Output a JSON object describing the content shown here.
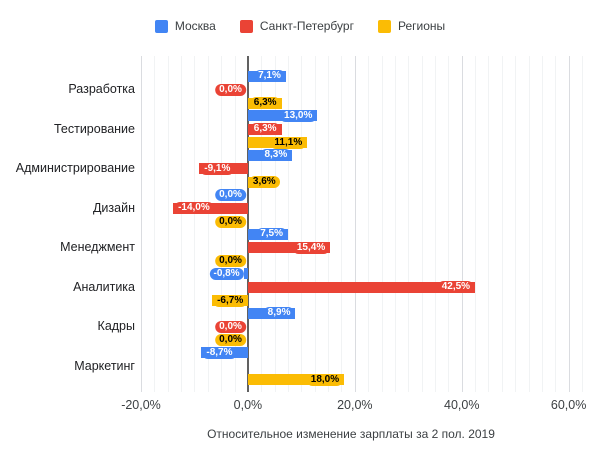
{
  "chart_data": {
    "type": "bar",
    "orientation": "horizontal",
    "title": "",
    "xlabel": "Относительное изменение зарплаты за 2 пол. 2019",
    "ylabel": "",
    "xlim": [
      -20,
      62.5
    ],
    "grid": "vertical, minor step 2.5, major step 20",
    "legend_position": "top-center",
    "categories": [
      "Разработка",
      "Тестирование",
      "Администрирование",
      "Дизайн",
      "Менеджмент",
      "Аналитика",
      "Кадры",
      "Маркетинг"
    ],
    "x_ticks": [
      {
        "value": -20,
        "label": "-20,0%"
      },
      {
        "value": 0,
        "label": "0,0%"
      },
      {
        "value": 20,
        "label": "20,0%"
      },
      {
        "value": 40,
        "label": "40,0%"
      },
      {
        "value": 60,
        "label": "60,0%"
      }
    ],
    "series": [
      {
        "name": "Москва",
        "color": "#4285F4",
        "label_text_color": "#ffffff",
        "values": [
          7.1,
          13.0,
          8.3,
          0.0,
          7.5,
          -0.8,
          8.9,
          -8.7
        ],
        "labels": [
          "7,1%",
          "13,0%",
          "8,3%",
          "0,0%",
          "7,5%",
          "-0,8%",
          "8,9%",
          "-8,7%"
        ]
      },
      {
        "name": "Санкт-Петербург",
        "color": "#EA4335",
        "label_text_color": "#ffffff",
        "values": [
          0.0,
          6.3,
          -9.1,
          -14.0,
          15.4,
          42.5,
          0.0,
          null
        ],
        "labels": [
          "0,0%",
          "6,3%",
          "-9,1%",
          "-14,0%",
          "15,4%",
          "42,5%",
          "0,0%",
          null
        ]
      },
      {
        "name": "Регионы",
        "color": "#FBBC04",
        "label_text_color": "#000000",
        "values": [
          6.3,
          11.1,
          3.6,
          0.0,
          0.0,
          -6.7,
          0.0,
          18.0
        ],
        "labels": [
          "6,3%",
          "11,1%",
          "3,6%",
          "0,0%",
          "0,0%",
          "-6,7%",
          "0,0%",
          "18,0%"
        ]
      }
    ]
  }
}
